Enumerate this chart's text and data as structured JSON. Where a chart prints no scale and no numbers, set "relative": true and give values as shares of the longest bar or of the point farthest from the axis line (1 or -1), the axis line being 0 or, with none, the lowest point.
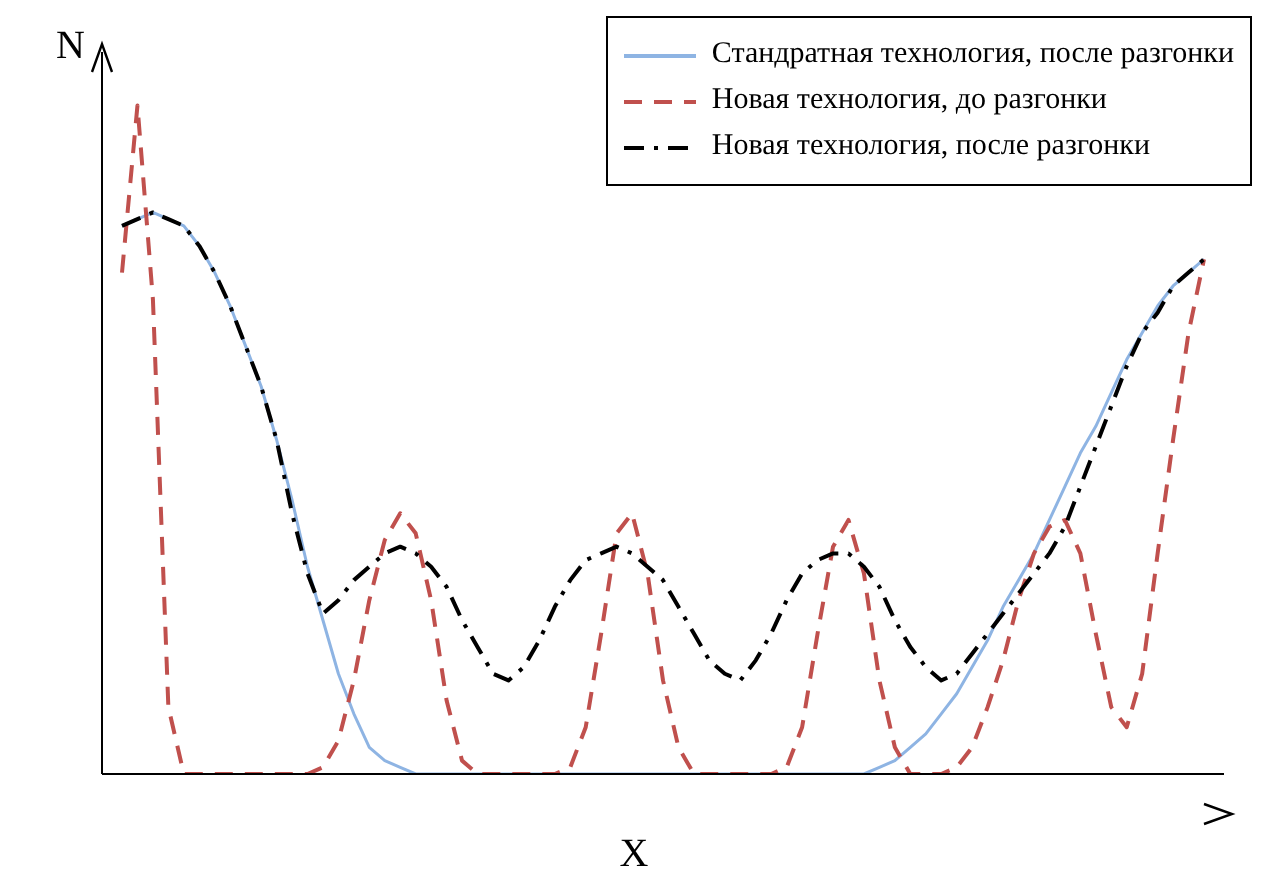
{
  "chart_data": {
    "type": "line",
    "relative": true,
    "xlabel": "X",
    "ylabel": "N",
    "legend": "top right",
    "grid": false,
    "marker": "none",
    "categories": [
      null,
      null,
      null,
      null,
      null,
      null,
      null,
      null,
      null,
      null,
      null,
      null,
      null,
      null,
      null,
      null,
      null,
      null,
      null,
      null,
      null,
      null,
      null,
      null,
      null,
      null,
      null,
      null,
      null,
      null,
      null,
      null,
      null,
      null,
      null,
      null,
      null,
      null,
      null,
      null,
      null,
      null,
      null,
      null,
      null,
      null,
      null,
      null,
      null,
      null,
      null,
      null,
      null,
      null,
      null,
      null,
      null,
      null,
      null,
      null,
      null,
      null,
      null,
      null,
      null,
      null,
      null,
      null,
      null,
      null,
      null
    ],
    "series": [
      {
        "name": "Стандратная технология, после разгонки",
        "color": "#8eb4e3",
        "line_style": "solid",
        "values": [
          0.82,
          0.83,
          0.84,
          0.83,
          0.82,
          0.79,
          0.75,
          0.7,
          0.64,
          0.58,
          0.5,
          0.41,
          0.31,
          0.23,
          0.15,
          0.09,
          0.04,
          0.02,
          0.01,
          0,
          0,
          0,
          0,
          0,
          0,
          0,
          0,
          0,
          0,
          0,
          0,
          0,
          0,
          0,
          0,
          0,
          0,
          0,
          0,
          0,
          0,
          0,
          0,
          0,
          0,
          0,
          0,
          0,
          0,
          0.01,
          0.02,
          0.04,
          0.06,
          0.09,
          0.12,
          0.16,
          0.2,
          0.25,
          0.29,
          0.33,
          0.38,
          0.43,
          0.48,
          0.52,
          0.57,
          0.62,
          0.66,
          0.7,
          0.73,
          0.75,
          0.77
        ]
      },
      {
        "name": "Новая технология, до разгонки",
        "color": "#c0504d",
        "line_style": "dashed",
        "values": [
          0.75,
          1,
          0.71,
          0.1,
          0,
          0,
          0,
          0,
          0,
          0,
          0,
          0,
          0,
          0.01,
          0.05,
          0.14,
          0.26,
          0.35,
          0.39,
          0.36,
          0.26,
          0.11,
          0.02,
          0,
          0,
          0,
          0,
          0,
          0,
          0.01,
          0.07,
          0.21,
          0.36,
          0.39,
          0.3,
          0.14,
          0.04,
          0,
          0,
          0,
          0,
          0,
          0,
          0.01,
          0.07,
          0.21,
          0.34,
          0.38,
          0.3,
          0.14,
          0.04,
          0,
          0,
          0,
          0.01,
          0.04,
          0.1,
          0.17,
          0.26,
          0.33,
          0.37,
          0.38,
          0.33,
          0.21,
          0.1,
          0.07,
          0.15,
          0.33,
          0.5,
          0.66,
          0.77
        ]
      },
      {
        "name": "Новая технология, после разгонки",
        "color": "#000000",
        "line_style": "dashdot",
        "values": [
          0.82,
          0.83,
          0.84,
          0.83,
          0.82,
          0.79,
          0.75,
          0.7,
          0.64,
          0.58,
          0.5,
          0.39,
          0.3,
          0.24,
          0.26,
          0.29,
          0.31,
          0.33,
          0.34,
          0.33,
          0.31,
          0.28,
          0.23,
          0.19,
          0.15,
          0.14,
          0.16,
          0.2,
          0.25,
          0.29,
          0.32,
          0.33,
          0.34,
          0.33,
          0.31,
          0.29,
          0.25,
          0.21,
          0.17,
          0.15,
          0.14,
          0.17,
          0.21,
          0.26,
          0.3,
          0.32,
          0.33,
          0.33,
          0.31,
          0.28,
          0.23,
          0.19,
          0.16,
          0.14,
          0.15,
          0.18,
          0.21,
          0.24,
          0.27,
          0.3,
          0.33,
          0.37,
          0.43,
          0.49,
          0.55,
          0.61,
          0.66,
          0.69,
          0.73,
          0.75,
          0.77
        ]
      }
    ]
  }
}
